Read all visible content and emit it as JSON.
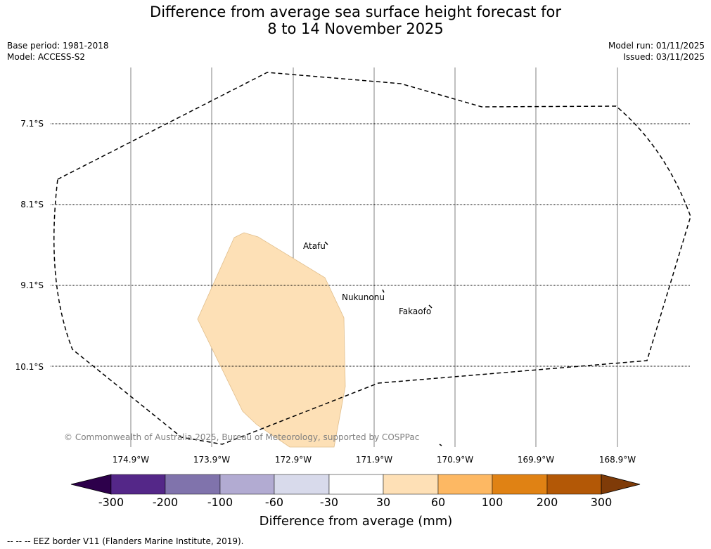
{
  "title": {
    "line1": "Difference from average sea surface height forecast for",
    "line2": "8 to 14 November 2025"
  },
  "meta": {
    "base_period": "Base period: 1981-2018",
    "model": "Model: ACCESS-S2",
    "model_run": "Model run: 01/11/2025",
    "issued": "Issued: 03/11/2025"
  },
  "map": {
    "latitude_labels": [
      "7.1°S",
      "8.1°S",
      "9.1°S",
      "10.1°S"
    ],
    "longitude_labels": [
      "174.9°W",
      "173.9°W",
      "172.9°W",
      "171.9°W",
      "170.9°W",
      "169.9°W",
      "168.9°W"
    ],
    "places": [
      "Atafu",
      "Nukunonu",
      "Fakaofo"
    ],
    "copyright": "© Commonwealth of Australia 2025, Bureau of Meteorology, supported by COSPPac",
    "anomaly_fill_color": "#fde0b6",
    "eez_line_color": "#000000"
  },
  "colorbar": {
    "tick_labels": [
      "-300",
      "-200",
      "-100",
      "-60",
      "-30",
      "30",
      "60",
      "100",
      "200",
      "300"
    ],
    "colors": [
      "#2d004b",
      "#542788",
      "#8073ac",
      "#b2abd2",
      "#d8daeb",
      "#ffffff",
      "#fee0b6",
      "#fdb863",
      "#e08214",
      "#b35806",
      "#7f3b08"
    ],
    "label": "Difference from average (mm)"
  },
  "footnote": "--  --  -- EEZ border V11 (Flanders Marine Institute, 2019)."
}
